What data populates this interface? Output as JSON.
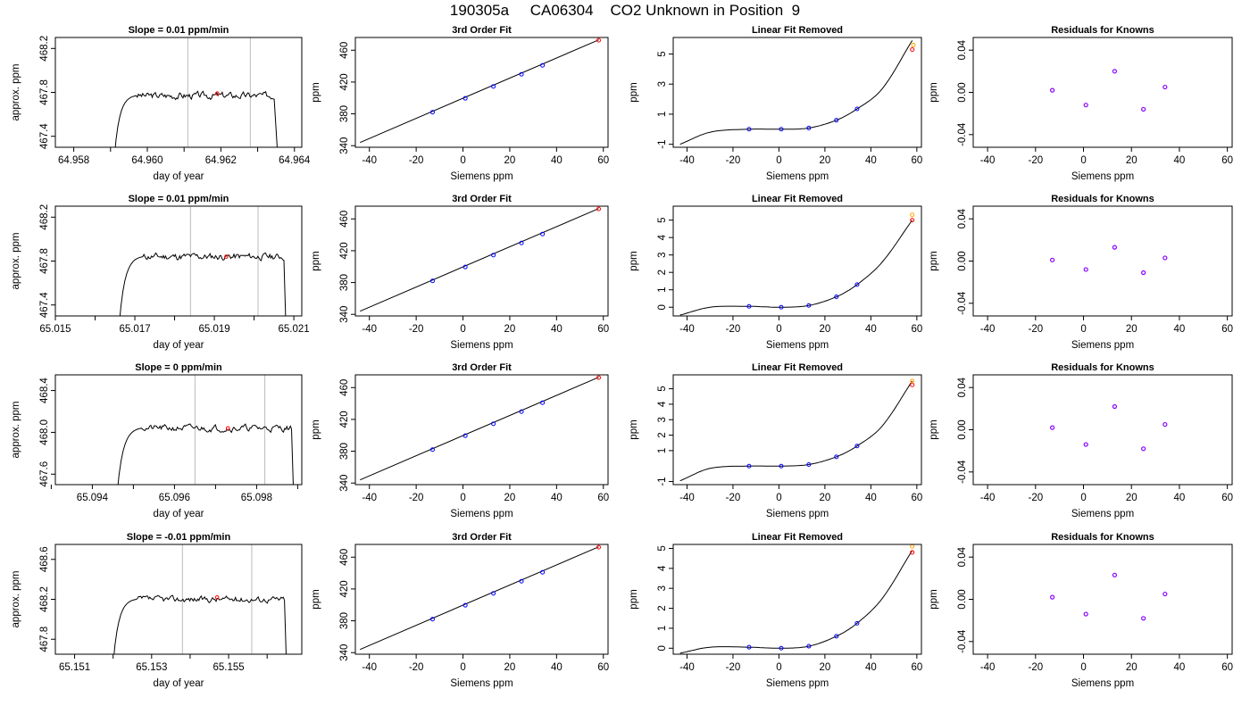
{
  "title": "190305a     CA06304    CO2 Unknown in Position  9",
  "colors": {
    "axis": "#000000",
    "line": "#000000",
    "vline": "#bbbbbb",
    "known": "#0000ff",
    "unknown": "#ff0000",
    "unknown_alt": "#ffa500",
    "residual": "#8800ff"
  },
  "chart_data": [
    {
      "row": 0,
      "col": 0,
      "type": "line",
      "title": "Slope =  0.01  ppm/min",
      "xlabel": "day of year",
      "ylabel": "approx. ppm",
      "xlim": [
        64.9575,
        64.9642
      ],
      "ylim": [
        467.3,
        468.3
      ],
      "xticks": [
        64.958,
        64.96,
        64.962,
        64.964
      ],
      "xtick_labels": [
        "64.958",
        "64.960",
        "64.962",
        "64.964"
      ],
      "xticks_minor": [
        64.959,
        64.961,
        64.963
      ],
      "yticks": [
        467.4,
        467.8,
        468.2
      ],
      "ytick_labels": [
        "467.4",
        "467.8",
        "468.2"
      ],
      "trace": {
        "start": 64.9591,
        "rise_end": 64.9597,
        "plateau_end": 64.96345,
        "end": 64.96355,
        "base": 467.2,
        "level": 467.77,
        "amp": 0.025,
        "seed": 3
      },
      "vlines": [
        64.9611,
        64.9628
      ],
      "marker": {
        "x": 64.9619,
        "y": 467.79
      }
    },
    {
      "row": 0,
      "col": 1,
      "type": "scatter",
      "title": "3rd Order Fit",
      "xlabel": "Siemens ppm",
      "ylabel": "ppm",
      "xlim": [
        -46,
        62
      ],
      "ylim": [
        338,
        476
      ],
      "xticks": [
        -40,
        -20,
        0,
        20,
        40,
        60
      ],
      "xtick_labels": [
        "-40",
        "-20",
        "0",
        "20",
        "40",
        "60"
      ],
      "yticks": [
        340,
        380,
        420,
        460
      ],
      "ytick_labels": [
        "340",
        "380",
        "420",
        "460"
      ],
      "line": {
        "x": [
          -44,
          58
        ],
        "y": [
          344,
          473
        ]
      },
      "knowns": {
        "x": [
          -13,
          1,
          13,
          25,
          34
        ],
        "y": [
          382,
          399.5,
          414.5,
          429.7,
          441
        ]
      },
      "unknowns": [
        {
          "x": 58,
          "y": 472.5
        }
      ]
    },
    {
      "row": 0,
      "col": 2,
      "type": "line",
      "title": "Linear Fit Removed",
      "xlabel": "Siemens ppm",
      "ylabel": "ppm",
      "xlim": [
        -46,
        62
      ],
      "ylim": [
        -1.2,
        6.1
      ],
      "xticks": [
        -40,
        -20,
        0,
        20,
        40,
        60
      ],
      "xtick_labels": [
        "-40",
        "-20",
        "0",
        "20",
        "40",
        "60"
      ],
      "yticks": [
        -1,
        1,
        3,
        5
      ],
      "ytick_labels": [
        "-1",
        "1",
        "3",
        "5"
      ],
      "curve": {
        "x": [
          -43,
          -30,
          -13,
          1,
          13,
          25,
          34,
          45,
          58
        ],
        "y": [
          -1.0,
          -0.2,
          0.0,
          0.0,
          0.08,
          0.6,
          1.35,
          2.7,
          5.9
        ]
      },
      "knowns": {
        "x": [
          -13,
          1,
          13,
          25,
          34
        ],
        "y": [
          0.0,
          0.0,
          0.08,
          0.6,
          1.35
        ]
      },
      "unknowns": [
        {
          "x": 58,
          "y": 5.3
        },
        {
          "x": 58.5,
          "y": 5.6,
          "alt": true
        }
      ]
    },
    {
      "row": 0,
      "col": 3,
      "type": "scatter",
      "title": "Residuals for Knowns",
      "xlabel": "Siemens ppm",
      "ylabel": "ppm",
      "xlim": [
        -46,
        62
      ],
      "ylim": [
        -0.052,
        0.052
      ],
      "xticks": [
        -40,
        -20,
        0,
        20,
        40,
        60
      ],
      "xtick_labels": [
        "-40",
        "-20",
        "0",
        "20",
        "40",
        "60"
      ],
      "yticks": [
        -0.04,
        0.0,
        0.04
      ],
      "ytick_labels": [
        "-0.04",
        "0.00",
        "0.04"
      ],
      "points": {
        "x": [
          -13,
          1,
          13,
          25,
          34
        ],
        "y": [
          0.002,
          -0.012,
          0.02,
          -0.016,
          0.005
        ]
      }
    },
    {
      "row": 1,
      "col": 0,
      "type": "line",
      "title": "Slope =  0.01  ppm/min",
      "xlabel": "day of year",
      "ylabel": "approx. ppm",
      "xlim": [
        65.015,
        65.0212
      ],
      "ylim": [
        467.3,
        468.3
      ],
      "xticks": [
        65.015,
        65.017,
        65.019,
        65.021
      ],
      "xtick_labels": [
        "65.015",
        "65.017",
        "65.019",
        "65.021"
      ],
      "xticks_minor": [
        65.016,
        65.018,
        65.02
      ],
      "yticks": [
        467.4,
        467.8,
        468.2
      ],
      "ytick_labels": [
        "467.4",
        "467.8",
        "468.2"
      ],
      "trace": {
        "start": 65.0166,
        "rise_end": 65.0172,
        "plateau_end": 65.02075,
        "end": 65.0208,
        "base": 467.2,
        "level": 467.84,
        "amp": 0.025,
        "seed": 11
      },
      "vlines": [
        65.0184,
        65.0201
      ],
      "marker": {
        "x": 65.0193,
        "y": 467.84
      }
    },
    {
      "row": 1,
      "col": 1,
      "type": "scatter",
      "title": "3rd Order Fit",
      "xlabel": "Siemens ppm",
      "ylabel": "ppm",
      "xlim": [
        -46,
        62
      ],
      "ylim": [
        338,
        476
      ],
      "xticks": [
        -40,
        -20,
        0,
        20,
        40,
        60
      ],
      "xtick_labels": [
        "-40",
        "-20",
        "0",
        "20",
        "40",
        "60"
      ],
      "yticks": [
        340,
        380,
        420,
        460
      ],
      "ytick_labels": [
        "340",
        "380",
        "420",
        "460"
      ],
      "line": {
        "x": [
          -44,
          58
        ],
        "y": [
          344,
          473
        ]
      },
      "knowns": {
        "x": [
          -13,
          1,
          13,
          25,
          34
        ],
        "y": [
          382,
          399.5,
          414.5,
          429.7,
          441
        ]
      },
      "unknowns": [
        {
          "x": 58,
          "y": 472.5
        }
      ]
    },
    {
      "row": 1,
      "col": 2,
      "type": "line",
      "title": "Linear Fit Removed",
      "xlabel": "Siemens ppm",
      "ylabel": "ppm",
      "xlim": [
        -46,
        62
      ],
      "ylim": [
        -0.5,
        5.8
      ],
      "xticks": [
        -40,
        -20,
        0,
        20,
        40,
        60
      ],
      "xtick_labels": [
        "-40",
        "-20",
        "0",
        "20",
        "40",
        "60"
      ],
      "yticks": [
        0,
        1,
        2,
        3,
        4,
        5
      ],
      "ytick_labels": [
        "0",
        "1",
        "2",
        "3",
        "4",
        "5"
      ],
      "curve": {
        "x": [
          -43,
          -30,
          -13,
          1,
          13,
          25,
          34,
          45,
          58
        ],
        "y": [
          -0.45,
          0.0,
          0.05,
          0.0,
          0.1,
          0.6,
          1.3,
          2.6,
          5.0
        ]
      },
      "knowns": {
        "x": [
          -13,
          1,
          13,
          25,
          34
        ],
        "y": [
          0.05,
          0.0,
          0.1,
          0.6,
          1.3
        ]
      },
      "unknowns": [
        {
          "x": 58,
          "y": 5.0
        },
        {
          "x": 58,
          "y": 5.3,
          "alt": true
        }
      ]
    },
    {
      "row": 1,
      "col": 3,
      "type": "scatter",
      "title": "Residuals for Knowns",
      "xlabel": "Siemens ppm",
      "ylabel": "ppm",
      "xlim": [
        -46,
        62
      ],
      "ylim": [
        -0.052,
        0.052
      ],
      "xticks": [
        -40,
        -20,
        0,
        20,
        40,
        60
      ],
      "xtick_labels": [
        "-40",
        "-20",
        "0",
        "20",
        "40",
        "60"
      ],
      "yticks": [
        -0.04,
        0.0,
        0.04
      ],
      "ytick_labels": [
        "-0.04",
        "0.00",
        "0.04"
      ],
      "points": {
        "x": [
          -13,
          1,
          13,
          25,
          34
        ],
        "y": [
          0.001,
          -0.008,
          0.013,
          -0.011,
          0.003
        ]
      }
    },
    {
      "row": 2,
      "col": 0,
      "type": "line",
      "title": "Slope =  0  ppm/min",
      "xlabel": "day of year",
      "ylabel": "approx. ppm",
      "xlim": [
        65.0931,
        65.0991
      ],
      "ylim": [
        467.5,
        468.55
      ],
      "xticks": [
        65.094,
        65.096,
        65.098
      ],
      "xtick_labels": [
        "65.094",
        "65.096",
        "65.098"
      ],
      "xticks_minor": [
        65.093,
        65.095,
        65.097,
        65.099
      ],
      "yticks": [
        467.6,
        468.0,
        468.4
      ],
      "ytick_labels": [
        "467.6",
        "468.0",
        "468.4"
      ],
      "trace": {
        "start": 65.0946,
        "rise_end": 65.0952,
        "plateau_end": 65.09885,
        "end": 65.0989,
        "base": 467.4,
        "level": 468.04,
        "amp": 0.025,
        "seed": 21
      },
      "vlines": [
        65.0965,
        65.0982
      ],
      "marker": {
        "x": 65.0973,
        "y": 468.04
      }
    },
    {
      "row": 2,
      "col": 1,
      "type": "scatter",
      "title": "3rd Order Fit",
      "xlabel": "Siemens ppm",
      "ylabel": "ppm",
      "xlim": [
        -46,
        62
      ],
      "ylim": [
        338,
        476
      ],
      "xticks": [
        -40,
        -20,
        0,
        20,
        40,
        60
      ],
      "xtick_labels": [
        "-40",
        "-20",
        "0",
        "20",
        "40",
        "60"
      ],
      "yticks": [
        340,
        380,
        420,
        460
      ],
      "ytick_labels": [
        "340",
        "380",
        "420",
        "460"
      ],
      "line": {
        "x": [
          -44,
          58
        ],
        "y": [
          344,
          473
        ]
      },
      "knowns": {
        "x": [
          -13,
          1,
          13,
          25,
          34
        ],
        "y": [
          382,
          399.5,
          414.5,
          429.7,
          441
        ]
      },
      "unknowns": [
        {
          "x": 58,
          "y": 472.5
        }
      ]
    },
    {
      "row": 2,
      "col": 2,
      "type": "line",
      "title": "Linear Fit Removed",
      "xlabel": "Siemens ppm",
      "ylabel": "ppm",
      "xlim": [
        -46,
        62
      ],
      "ylim": [
        -1.2,
        5.9
      ],
      "xticks": [
        -40,
        -20,
        0,
        20,
        40,
        60
      ],
      "xtick_labels": [
        "-40",
        "-20",
        "0",
        "20",
        "40",
        "60"
      ],
      "yticks": [
        -1,
        1,
        2,
        3,
        4,
        5
      ],
      "ytick_labels": [
        "-1",
        "1",
        "2",
        "3",
        "4",
        "5"
      ],
      "curve": {
        "x": [
          -43,
          -30,
          -13,
          1,
          13,
          25,
          34,
          45,
          58
        ],
        "y": [
          -0.95,
          -0.15,
          0.0,
          0.0,
          0.1,
          0.6,
          1.3,
          2.6,
          5.5
        ]
      },
      "knowns": {
        "x": [
          -13,
          1,
          13,
          25,
          34
        ],
        "y": [
          0.0,
          0.0,
          0.1,
          0.6,
          1.3
        ]
      },
      "unknowns": [
        {
          "x": 58,
          "y": 5.25
        },
        {
          "x": 58,
          "y": 5.5,
          "alt": true
        }
      ]
    },
    {
      "row": 2,
      "col": 3,
      "type": "scatter",
      "title": "Residuals for Knowns",
      "xlabel": "Siemens ppm",
      "ylabel": "ppm",
      "xlim": [
        -46,
        62
      ],
      "ylim": [
        -0.052,
        0.052
      ],
      "xticks": [
        -40,
        -20,
        0,
        20,
        40,
        60
      ],
      "xtick_labels": [
        "-40",
        "-20",
        "0",
        "20",
        "40",
        "60"
      ],
      "yticks": [
        -0.04,
        0.0,
        0.04
      ],
      "ytick_labels": [
        "-0.04",
        "0.00",
        "0.04"
      ],
      "points": {
        "x": [
          -13,
          1,
          13,
          25,
          34
        ],
        "y": [
          0.002,
          -0.014,
          0.022,
          -0.018,
          0.005
        ]
      }
    },
    {
      "row": 3,
      "col": 0,
      "type": "line",
      "title": "Slope =  -0.01  ppm/min",
      "xlabel": "day of year",
      "ylabel": "approx. ppm",
      "xlim": [
        65.1505,
        65.1569
      ],
      "ylim": [
        467.65,
        468.75
      ],
      "xticks": [
        65.151,
        65.153,
        65.155
      ],
      "xtick_labels": [
        "65.151",
        "65.153",
        "65.155"
      ],
      "xticks_minor": [
        65.152,
        65.154,
        65.156
      ],
      "yticks": [
        467.8,
        468.2,
        468.6
      ],
      "ytick_labels": [
        "467.8",
        "468.2",
        "468.6"
      ],
      "trace": {
        "start": 65.152,
        "rise_end": 65.1526,
        "plateau_end": 65.15645,
        "end": 65.1565,
        "base": 467.55,
        "level": 468.2,
        "amp": 0.025,
        "seed": 37
      },
      "vlines": [
        65.1538,
        65.1556
      ],
      "marker": {
        "x": 65.1547,
        "y": 468.22
      }
    },
    {
      "row": 3,
      "col": 1,
      "type": "scatter",
      "title": "3rd Order Fit",
      "xlabel": "Siemens ppm",
      "ylabel": "ppm",
      "xlim": [
        -46,
        62
      ],
      "ylim": [
        338,
        476
      ],
      "xticks": [
        -40,
        -20,
        0,
        20,
        40,
        60
      ],
      "xtick_labels": [
        "-40",
        "-20",
        "0",
        "20",
        "40",
        "60"
      ],
      "yticks": [
        340,
        380,
        420,
        460
      ],
      "ytick_labels": [
        "340",
        "380",
        "420",
        "460"
      ],
      "line": {
        "x": [
          -44,
          58
        ],
        "y": [
          344,
          473
        ]
      },
      "knowns": {
        "x": [
          -13,
          1,
          13,
          25,
          34
        ],
        "y": [
          382,
          399.5,
          414.5,
          429.7,
          441
        ]
      },
      "unknowns": [
        {
          "x": 58,
          "y": 472.5
        }
      ]
    },
    {
      "row": 3,
      "col": 2,
      "type": "line",
      "title": "Linear Fit Removed",
      "xlabel": "Siemens ppm",
      "ylabel": "ppm",
      "xlim": [
        -46,
        62
      ],
      "ylim": [
        -0.3,
        5.2
      ],
      "xticks": [
        -40,
        -20,
        0,
        20,
        40,
        60
      ],
      "xtick_labels": [
        "-40",
        "-20",
        "0",
        "20",
        "40",
        "60"
      ],
      "yticks": [
        0,
        1,
        2,
        3,
        4,
        5
      ],
      "ytick_labels": [
        "0",
        "1",
        "2",
        "3",
        "4",
        "5"
      ],
      "curve": {
        "x": [
          -43,
          -30,
          -13,
          1,
          13,
          25,
          34,
          45,
          58
        ],
        "y": [
          -0.25,
          0.05,
          0.05,
          0.0,
          0.1,
          0.6,
          1.25,
          2.5,
          4.9
        ]
      },
      "knowns": {
        "x": [
          -13,
          1,
          13,
          25,
          34
        ],
        "y": [
          0.05,
          0.0,
          0.1,
          0.6,
          1.25
        ]
      },
      "unknowns": [
        {
          "x": 58,
          "y": 4.8
        },
        {
          "x": 58,
          "y": 5.1,
          "alt": true
        }
      ]
    },
    {
      "row": 3,
      "col": 3,
      "type": "scatter",
      "title": "Residuals for Knowns",
      "xlabel": "Siemens ppm",
      "ylabel": "ppm",
      "xlim": [
        -46,
        62
      ],
      "ylim": [
        -0.052,
        0.052
      ],
      "xticks": [
        -40,
        -20,
        0,
        20,
        40,
        60
      ],
      "xtick_labels": [
        "-40",
        "-20",
        "0",
        "20",
        "40",
        "60"
      ],
      "yticks": [
        -0.04,
        0.0,
        0.04
      ],
      "ytick_labels": [
        "-0.04",
        "0.00",
        "0.04"
      ],
      "points": {
        "x": [
          -13,
          1,
          13,
          25,
          34
        ],
        "y": [
          0.002,
          -0.014,
          0.023,
          -0.018,
          0.005
        ]
      }
    }
  ]
}
